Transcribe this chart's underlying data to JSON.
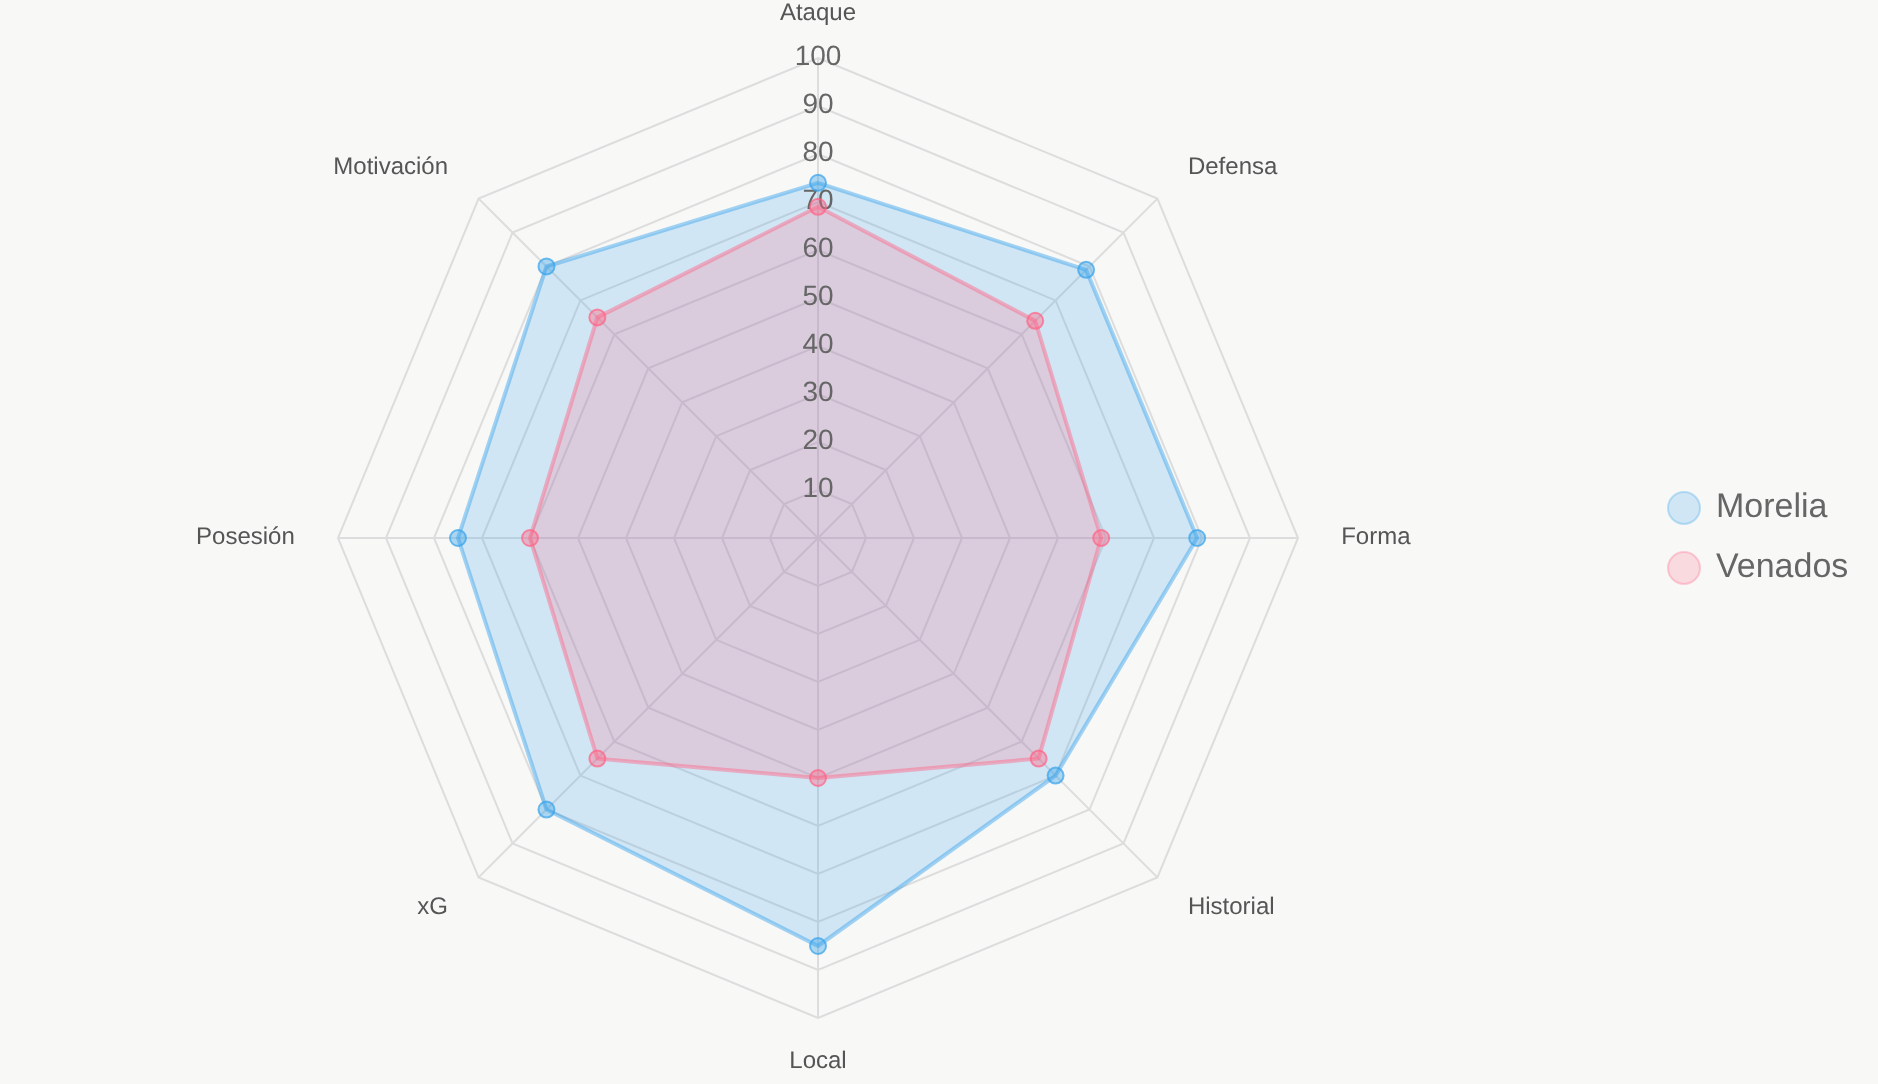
{
  "chart_data": {
    "type": "radar",
    "categories": [
      "Ataque",
      "Defensa",
      "Forma",
      "Historial",
      "Local",
      "xG",
      "Posesión",
      "Motivación"
    ],
    "ylim": [
      0,
      100
    ],
    "yticks": [
      10,
      20,
      30,
      40,
      50,
      60,
      70,
      80,
      90,
      100
    ],
    "legend": "right",
    "marker": "circle",
    "grid": true,
    "series": [
      {
        "name": "Morelia",
        "color": "#36a2eb",
        "values": [
          74,
          79,
          79,
          70,
          85,
          80,
          75,
          80
        ]
      },
      {
        "name": "Venados",
        "color": "#ff6384",
        "values": [
          69,
          64,
          59,
          65,
          50,
          65,
          60,
          65
        ]
      }
    ]
  }
}
